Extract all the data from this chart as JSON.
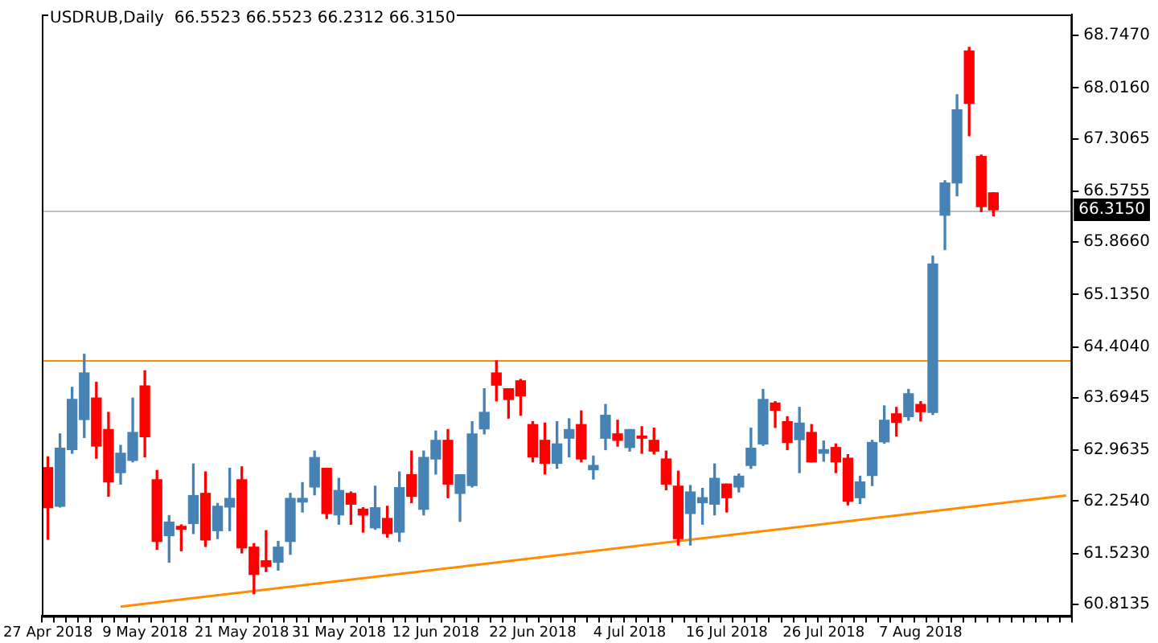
{
  "chart_data": {
    "type": "candlestick",
    "title": "USDRUB,Daily  66.5523 66.5523 66.2312 66.3150",
    "categories": [
      "27 Apr 2018",
      null,
      null,
      null,
      null,
      null,
      null,
      null,
      "9 May 2018",
      null,
      null,
      null,
      null,
      null,
      null,
      null,
      "21 May 2018",
      null,
      null,
      null,
      null,
      null,
      null,
      null,
      "31 May 2018",
      null,
      null,
      null,
      null,
      null,
      null,
      null,
      "12 Jun 2018",
      null,
      null,
      null,
      null,
      null,
      null,
      null,
      "22 Jun 2018",
      null,
      null,
      null,
      null,
      null,
      null,
      null,
      "4 Jul 2018",
      null,
      null,
      null,
      null,
      null,
      null,
      null,
      "16 Jul 2018",
      null,
      null,
      null,
      null,
      null,
      null,
      null,
      "26 Jul 2018",
      null,
      null,
      null,
      null,
      null,
      null,
      null,
      "7 Aug 2018",
      null,
      null,
      null,
      null,
      null,
      null,
      null,
      null,
      null,
      null,
      null,
      null
    ],
    "series": [
      {
        "type": "candlestick",
        "ohlc": [
          [
            62.72,
            62.87,
            61.72,
            62.16
          ],
          [
            62.18,
            63.19,
            62.17,
            62.99
          ],
          [
            62.97,
            63.84,
            62.92,
            63.67
          ],
          [
            63.39,
            64.3,
            63.14,
            64.04
          ],
          [
            63.69,
            63.91,
            62.85,
            63.02
          ],
          [
            63.25,
            63.49,
            62.32,
            62.52
          ],
          [
            62.65,
            63.03,
            62.49,
            62.92
          ],
          [
            62.82,
            63.69,
            62.8,
            63.21
          ],
          [
            63.86,
            64.07,
            62.87,
            63.15
          ],
          [
            62.55,
            62.68,
            61.58,
            61.69
          ],
          [
            61.77,
            62.05,
            61.4,
            61.96
          ],
          [
            61.9,
            61.92,
            61.56,
            61.86
          ],
          [
            61.94,
            62.77,
            61.8,
            62.33
          ],
          [
            62.36,
            62.66,
            61.62,
            61.71
          ],
          [
            61.84,
            62.22,
            61.73,
            62.18
          ],
          [
            62.17,
            62.71,
            61.84,
            62.29
          ],
          [
            62.55,
            62.73,
            61.53,
            61.6
          ],
          [
            61.61,
            61.66,
            60.96,
            61.23
          ],
          [
            61.42,
            61.84,
            61.27,
            61.34
          ],
          [
            61.4,
            61.69,
            61.29,
            61.61
          ],
          [
            61.69,
            62.36,
            61.51,
            62.29
          ],
          [
            62.24,
            62.51,
            62.1,
            62.29
          ],
          [
            62.45,
            62.95,
            62.34,
            62.86
          ],
          [
            62.71,
            62.71,
            62.01,
            62.08
          ],
          [
            62.06,
            62.57,
            61.93,
            62.4
          ],
          [
            62.36,
            62.38,
            61.93,
            62.21
          ],
          [
            62.14,
            62.16,
            61.82,
            62.06
          ],
          [
            61.88,
            62.46,
            61.86,
            62.16
          ],
          [
            62.01,
            62.18,
            61.75,
            61.8
          ],
          [
            61.82,
            62.66,
            61.69,
            62.44
          ],
          [
            62.62,
            62.95,
            62.23,
            62.32
          ],
          [
            62.14,
            62.95,
            62.06,
            62.86
          ],
          [
            62.84,
            63.23,
            62.63,
            63.1
          ],
          [
            63.1,
            63.25,
            62.3,
            62.49
          ],
          [
            62.36,
            62.62,
            61.97,
            62.62
          ],
          [
            62.47,
            63.36,
            62.45,
            63.19
          ],
          [
            63.26,
            63.82,
            63.19,
            63.49
          ],
          [
            64.04,
            64.21,
            63.65,
            63.87
          ],
          [
            63.82,
            63.82,
            63.41,
            63.67
          ],
          [
            63.93,
            63.95,
            63.45,
            63.72
          ],
          [
            63.32,
            63.36,
            62.8,
            62.87
          ],
          [
            63.1,
            63.34,
            62.63,
            62.78
          ],
          [
            62.78,
            63.36,
            62.71,
            63.05
          ],
          [
            63.13,
            63.4,
            62.87,
            63.25
          ],
          [
            63.32,
            63.51,
            62.8,
            62.84
          ],
          [
            62.69,
            62.88,
            62.56,
            62.75
          ],
          [
            63.13,
            63.6,
            62.97,
            63.45
          ],
          [
            63.19,
            63.38,
            63.02,
            63.1
          ],
          [
            63.0,
            63.25,
            62.95,
            63.25
          ],
          [
            63.16,
            63.29,
            62.92,
            63.13
          ],
          [
            63.1,
            63.27,
            62.91,
            62.95
          ],
          [
            62.84,
            62.95,
            62.41,
            62.49
          ],
          [
            62.46,
            62.67,
            61.64,
            61.73
          ],
          [
            62.08,
            62.47,
            61.64,
            62.38
          ],
          [
            62.23,
            62.43,
            61.93,
            62.3
          ],
          [
            62.21,
            62.77,
            62.06,
            62.57
          ],
          [
            62.49,
            62.49,
            62.1,
            62.3
          ],
          [
            62.45,
            62.63,
            62.38,
            62.6
          ],
          [
            62.75,
            63.27,
            62.71,
            62.99
          ],
          [
            63.05,
            63.81,
            63.03,
            63.67
          ],
          [
            63.62,
            63.64,
            63.28,
            63.52
          ],
          [
            63.36,
            63.43,
            62.97,
            63.07
          ],
          [
            63.11,
            63.56,
            62.65,
            63.34
          ],
          [
            63.21,
            63.32,
            62.8,
            62.8
          ],
          [
            62.92,
            63.09,
            62.81,
            62.97
          ],
          [
            63.0,
            63.05,
            62.65,
            62.8
          ],
          [
            62.85,
            62.9,
            62.2,
            62.25
          ],
          [
            62.3,
            62.6,
            62.22,
            62.52
          ],
          [
            62.61,
            63.1,
            62.47,
            63.07
          ],
          [
            63.08,
            63.58,
            63.06,
            63.38
          ],
          [
            63.47,
            63.56,
            63.16,
            63.35
          ],
          [
            63.43,
            63.81,
            63.38,
            63.75
          ],
          [
            63.6,
            63.64,
            63.37,
            63.5
          ],
          [
            63.49,
            65.67,
            63.46,
            65.56
          ],
          [
            66.24,
            66.72,
            65.76,
            66.69
          ],
          [
            66.69,
            67.92,
            66.51,
            67.71
          ],
          [
            68.53,
            68.58,
            67.35,
            67.8
          ],
          [
            67.06,
            67.08,
            66.29,
            66.36
          ],
          [
            66.5523,
            66.5523,
            66.2312,
            66.315
          ],
          null,
          null,
          null,
          null,
          null,
          null
        ],
        "colors": [
          "#ff0000",
          "#4682b4",
          "#4682b4",
          "#4682b4",
          "#ff0000",
          "#ff0000",
          "#4682b4",
          "#4682b4",
          "#ff0000",
          "#ff0000",
          "#4682b4",
          "#ff0000",
          "#4682b4",
          "#ff0000",
          "#4682b4",
          "#4682b4",
          "#ff0000",
          "#ff0000",
          "#ff0000",
          "#4682b4",
          "#4682b4",
          "#4682b4",
          "#4682b4",
          "#ff0000",
          "#4682b4",
          "#ff0000",
          "#ff0000",
          "#4682b4",
          "#ff0000",
          "#4682b4",
          "#ff0000",
          "#4682b4",
          "#4682b4",
          "#ff0000",
          "#4682b4",
          "#4682b4",
          "#4682b4",
          "#ff0000",
          "#ff0000",
          "#ff0000",
          "#ff0000",
          "#ff0000",
          "#4682b4",
          "#4682b4",
          "#ff0000",
          "#4682b4",
          "#4682b4",
          "#ff0000",
          "#4682b4",
          "#ff0000",
          "#ff0000",
          "#ff0000",
          "#ff0000",
          "#4682b4",
          "#4682b4",
          "#4682b4",
          "#ff0000",
          "#4682b4",
          "#4682b4",
          "#4682b4",
          "#ff0000",
          "#ff0000",
          "#4682b4",
          "#ff0000",
          "#4682b4",
          "#ff0000",
          "#ff0000",
          "#4682b4",
          "#4682b4",
          "#4682b4",
          "#ff0000",
          "#4682b4",
          "#ff0000",
          "#4682b4",
          "#4682b4",
          "#4682b4",
          "#ff0000",
          "#ff0000",
          "#ff0000",
          null,
          null,
          null,
          null,
          null,
          null
        ]
      },
      {
        "type": "line",
        "color": "#ff8c00",
        "values": [
          null,
          null,
          null,
          null,
          null,
          null,
          60.78,
          null,
          null,
          null,
          null,
          null,
          null,
          null,
          null,
          null,
          null,
          null,
          null,
          null,
          null,
          null,
          null,
          null,
          null,
          null,
          null,
          null,
          null,
          null,
          null,
          null,
          null,
          null,
          null,
          null,
          null,
          null,
          null,
          null,
          null,
          null,
          null,
          null,
          null,
          null,
          null,
          null,
          null,
          null,
          null,
          null,
          null,
          null,
          null,
          null,
          null,
          null,
          null,
          null,
          null,
          null,
          null,
          null,
          null,
          null,
          null,
          null,
          null,
          null,
          null,
          null,
          null,
          null,
          null,
          null,
          null,
          null,
          null,
          null,
          null,
          null,
          null,
          null,
          62.33
        ]
      }
    ],
    "ylim": [
      60.65,
      69.04
    ],
    "yticks": [
      {
        "value": 60.8135,
        "label": "60.8135"
      },
      {
        "value": 61.523,
        "label": "61.5230"
      },
      {
        "value": 62.254,
        "label": "62.2540"
      },
      {
        "value": 62.9635,
        "label": "62.9635"
      },
      {
        "value": 63.6945,
        "label": "63.6945"
      },
      {
        "value": 64.404,
        "label": "64.4040"
      },
      {
        "value": 65.135,
        "label": "65.1350"
      },
      {
        "value": 65.866,
        "label": "65.8660"
      },
      {
        "value": 66.5755,
        "label": "66.5755"
      },
      {
        "value": 67.3065,
        "label": "67.3065"
      },
      {
        "value": 68.016,
        "label": "68.0160"
      },
      {
        "value": 68.747,
        "label": "68.7470"
      }
    ],
    "ref_lines": [
      {
        "axis": "y",
        "value": 64.23,
        "color": "#ff8c00"
      },
      {
        "axis": "y",
        "value": 66.315,
        "label": "66.3150",
        "color": "#c0c0c0"
      }
    ],
    "grid": false,
    "legend": false
  }
}
